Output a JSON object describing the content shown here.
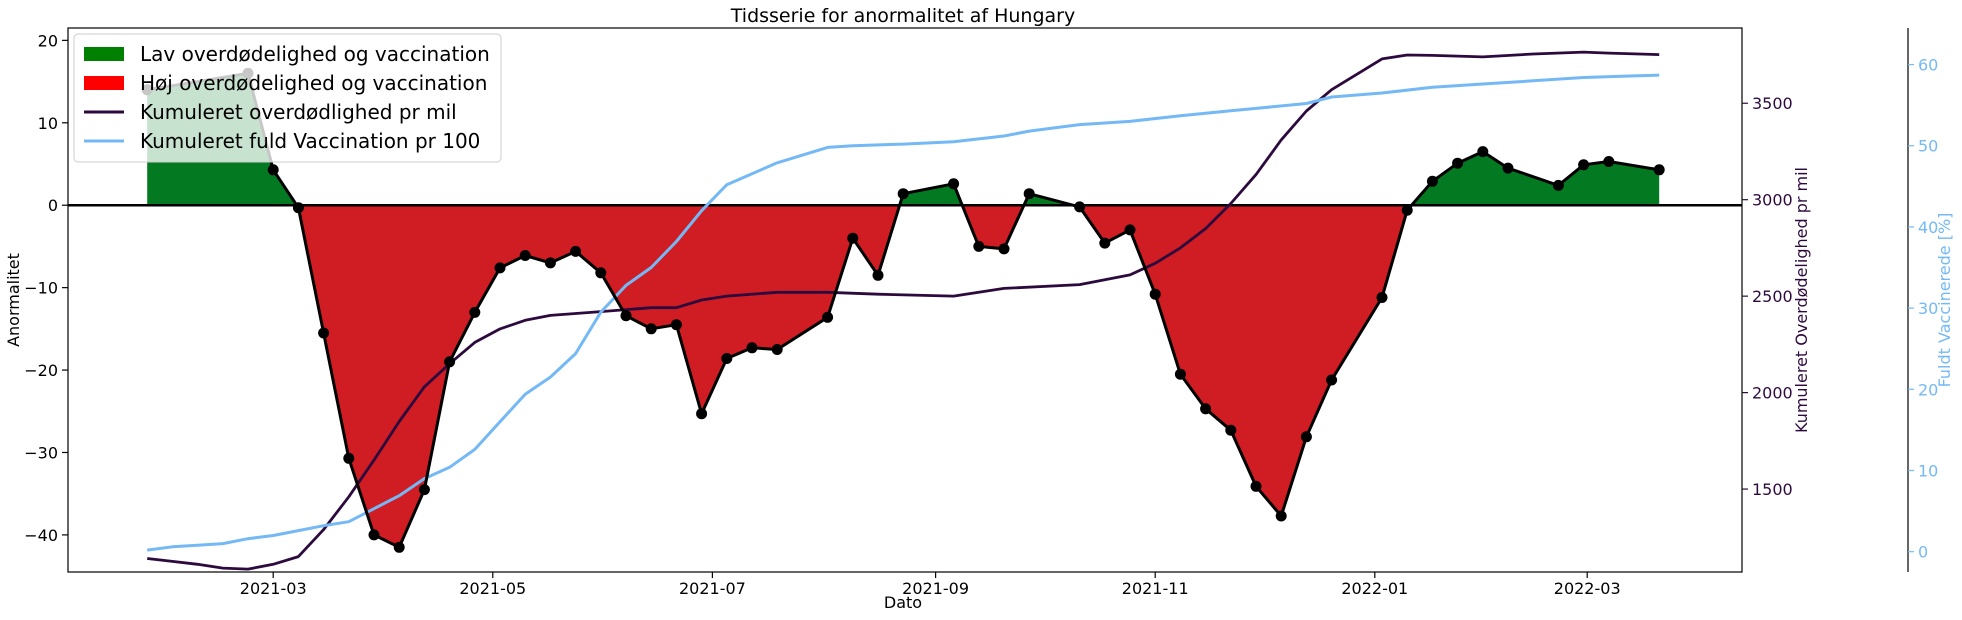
{
  "chart_data": {
    "type": "area+line",
    "title": "Tidsserie for anormalitet af Hungary",
    "xlabel": "Dato",
    "ylabel_left": "Anormalitet",
    "ylabel_right1": "Kumuleret Overdødelighed pr mil",
    "ylabel_right2": "Fuldt Vaccinerede [%]",
    "ylim_left": [
      -44.5,
      21.5
    ],
    "ylim_right1": [
      1070,
      3890
    ],
    "ylim_right2": [
      -2.5,
      64.5
    ],
    "xlim": [
      "2021-01-03",
      "2022-04-13"
    ],
    "x_ticks": [
      "2021-03-01",
      "2021-05-01",
      "2021-07-01",
      "2021-09-01",
      "2021-11-01",
      "2022-01-01",
      "2022-03-01"
    ],
    "x_tick_labels": [
      "2021-03",
      "2021-05",
      "2021-07",
      "2021-09",
      "2021-11",
      "2022-01",
      "2022-03"
    ],
    "y_ticks_left": [
      -40,
      -30,
      -20,
      -10,
      0,
      10,
      20
    ],
    "y_ticks_right1": [
      1500,
      2000,
      2500,
      3000,
      3500
    ],
    "y_ticks_right2": [
      0,
      10,
      20,
      30,
      40,
      50,
      60
    ],
    "legend": {
      "placement": "top-left",
      "entries": [
        {
          "label": "Lav overdødelighed og vaccination",
          "kind": "patch",
          "color": "#008000"
        },
        {
          "label": "Høj overdødelighed og vaccination",
          "kind": "patch",
          "color": "#ff0000"
        },
        {
          "label": "Kumuleret overdødlighed pr mil",
          "kind": "line",
          "color": "#2d0a3e"
        },
        {
          "label": "Kumuleret fuld Vaccination pr 100",
          "kind": "line",
          "color": "#74b9f5"
        }
      ]
    },
    "colors": {
      "positive_fill": "#037a21",
      "negative_fill": "#d01c23",
      "anomaly_line": "#000000",
      "excess_line": "#2d0a3e",
      "vaccination_line": "#74b9f5"
    },
    "anomaly": {
      "dates": [
        "2021-01-25",
        "2021-02-22",
        "2021-03-01",
        "2021-03-08",
        "2021-03-15",
        "2021-03-22",
        "2021-03-29",
        "2021-04-05",
        "2021-04-12",
        "2021-04-19",
        "2021-04-26",
        "2021-05-03",
        "2021-05-10",
        "2021-05-17",
        "2021-05-24",
        "2021-05-31",
        "2021-06-07",
        "2021-06-14",
        "2021-06-21",
        "2021-06-28",
        "2021-07-05",
        "2021-07-12",
        "2021-07-19",
        "2021-08-02",
        "2021-08-09",
        "2021-08-16",
        "2021-08-23",
        "2021-09-06",
        "2021-09-13",
        "2021-09-20",
        "2021-09-27",
        "2021-10-11",
        "2021-10-18",
        "2021-10-25",
        "2021-11-01",
        "2021-11-08",
        "2021-11-15",
        "2021-11-22",
        "2021-11-29",
        "2021-12-06",
        "2021-12-13",
        "2021-12-20",
        "2022-01-03",
        "2022-01-10",
        "2022-01-17",
        "2022-01-24",
        "2022-01-31",
        "2022-02-07",
        "2022-02-21",
        "2022-02-28",
        "2022-03-07",
        "2022-03-21"
      ],
      "values": [
        14,
        16,
        4.3,
        -0.3,
        -15.5,
        -30.7,
        -40,
        -41.5,
        -34.5,
        -19,
        -13,
        -7.6,
        -6.1,
        -7,
        -5.6,
        -8.2,
        -13.4,
        -15,
        -14.5,
        -25.3,
        -18.6,
        -17.3,
        -17.5,
        -13.6,
        -4,
        -8.5,
        1.4,
        2.6,
        -5,
        -5.3,
        1.4,
        -0.2,
        -4.6,
        -3,
        -10.8,
        -20.5,
        -24.7,
        -27.3,
        -34.1,
        -37.7,
        -28.1,
        -21.2,
        -11.2,
        -0.6,
        2.9,
        5.1,
        6.5,
        4.5,
        2.4,
        4.9,
        5.3,
        4.3
      ]
    },
    "excess_deaths": {
      "dates": [
        "2021-01-25",
        "2021-02-01",
        "2021-02-08",
        "2021-02-15",
        "2021-02-22",
        "2021-03-01",
        "2021-03-08",
        "2021-03-15",
        "2021-03-22",
        "2021-03-29",
        "2021-04-05",
        "2021-04-12",
        "2021-04-19",
        "2021-04-26",
        "2021-05-03",
        "2021-05-10",
        "2021-05-17",
        "2021-05-31",
        "2021-06-14",
        "2021-06-21",
        "2021-06-28",
        "2021-07-05",
        "2021-07-19",
        "2021-08-02",
        "2021-08-16",
        "2021-09-06",
        "2021-09-20",
        "2021-10-11",
        "2021-10-25",
        "2021-11-01",
        "2021-11-08",
        "2021-11-15",
        "2021-11-22",
        "2021-11-29",
        "2021-12-06",
        "2021-12-13",
        "2021-12-20",
        "2021-12-27",
        "2022-01-03",
        "2022-01-10",
        "2022-01-17",
        "2022-01-31",
        "2022-02-14",
        "2022-02-28",
        "2022-03-07",
        "2022-03-21"
      ],
      "values": [
        1140,
        1125,
        1110,
        1090,
        1085,
        1110,
        1150,
        1290,
        1460,
        1650,
        1850,
        2030,
        2150,
        2260,
        2330,
        2375,
        2400,
        2420,
        2440,
        2440,
        2480,
        2500,
        2520,
        2520,
        2510,
        2500,
        2540,
        2560,
        2610,
        2670,
        2750,
        2850,
        2980,
        3130,
        3310,
        3460,
        3570,
        3650,
        3730,
        3750,
        3748,
        3740,
        3755,
        3765,
        3760,
        3752
      ]
    },
    "vaccination": {
      "dates": [
        "2021-01-25",
        "2021-02-01",
        "2021-02-08",
        "2021-02-15",
        "2021-02-22",
        "2021-03-01",
        "2021-03-08",
        "2021-03-15",
        "2021-03-22",
        "2021-03-29",
        "2021-04-05",
        "2021-04-12",
        "2021-04-19",
        "2021-04-26",
        "2021-05-03",
        "2021-05-10",
        "2021-05-17",
        "2021-05-24",
        "2021-05-31",
        "2021-06-07",
        "2021-06-14",
        "2021-06-21",
        "2021-06-28",
        "2021-07-05",
        "2021-07-19",
        "2021-08-02",
        "2021-08-09",
        "2021-08-23",
        "2021-09-06",
        "2021-09-20",
        "2021-09-27",
        "2021-10-11",
        "2021-10-25",
        "2021-11-08",
        "2021-11-22",
        "2021-11-29",
        "2021-12-13",
        "2021-12-20",
        "2022-01-03",
        "2022-01-17",
        "2022-01-31",
        "2022-02-14",
        "2022-02-28",
        "2022-03-14",
        "2022-03-21"
      ],
      "values": [
        0.2,
        0.6,
        0.8,
        1.0,
        1.6,
        2.0,
        2.6,
        3.2,
        3.7,
        5.3,
        6.9,
        9.0,
        10.4,
        12.6,
        16.0,
        19.4,
        21.5,
        24.4,
        29.5,
        32.8,
        35.0,
        38.2,
        42.0,
        45.2,
        47.9,
        49.8,
        50.0,
        50.2,
        50.5,
        51.2,
        51.8,
        52.6,
        53.0,
        53.7,
        54.3,
        54.6,
        55.2,
        56.0,
        56.5,
        57.2,
        57.6,
        58.0,
        58.4,
        58.6,
        58.7
      ]
    }
  }
}
